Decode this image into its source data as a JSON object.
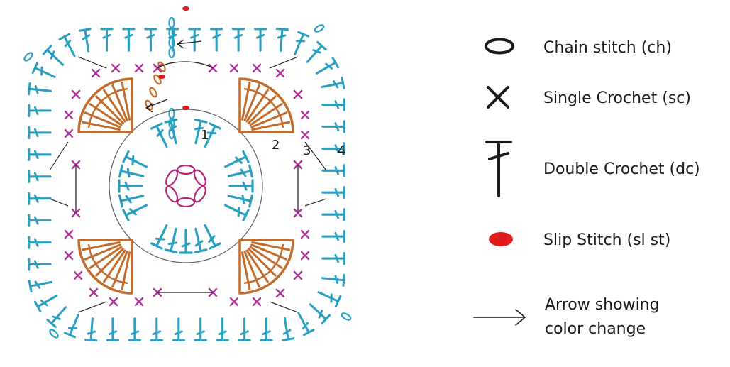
{
  "colors": {
    "round1": "#2b9fc0",
    "round2": "#c26b2a",
    "round3": "#b0339b",
    "round4": "#2b9fc0",
    "center_ring": "#b0267a",
    "slip_stitch": "#e01b1b",
    "ink": "#1a1a1a"
  },
  "round_labels": [
    "1",
    "2",
    "3",
    "4"
  ],
  "legend": [
    {
      "symbol": "chain-stitch-icon",
      "label": "Chain stitch (ch)"
    },
    {
      "symbol": "single-crochet-icon",
      "label": "Single Crochet (sc)"
    },
    {
      "symbol": "double-crochet-icon",
      "label": "Double Crochet (dc)"
    },
    {
      "symbol": "slip-stitch-icon",
      "label": "Slip Stitch (sl st)"
    },
    {
      "symbol": "arrow-icon",
      "label_lines": [
        "Arrow showing",
        "color change"
      ]
    }
  ]
}
